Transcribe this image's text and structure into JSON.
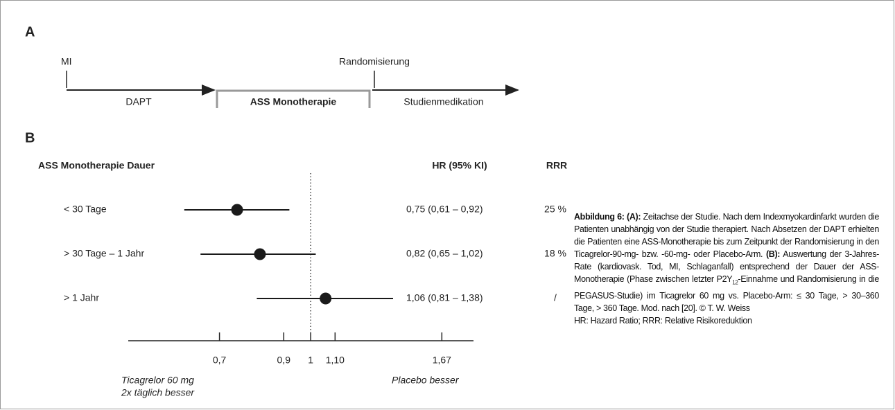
{
  "panel_a": {
    "label": "A",
    "mi": "MI",
    "dapt": "DAPT",
    "monotherapy": "ASS Monotherapie",
    "randomization": "Randomisierung",
    "study_medication": "Studienmedikation"
  },
  "panel_b_label": "B",
  "chart_data": {
    "type": "forest",
    "column_headers": {
      "label": "ASS Monotherapie Dauer",
      "estimate": "HR (95% KI)",
      "rrr": "RRR"
    },
    "categories": [
      "< 30 Tage",
      "> 30 Tage – 1 Jahr",
      "> 1 Jahr"
    ],
    "values": [
      0.75,
      0.82,
      1.06
    ],
    "ci_low": [
      0.61,
      0.65,
      0.81
    ],
    "ci_high": [
      0.92,
      1.02,
      1.38
    ],
    "value_labels": [
      "0,75 (0,61 – 0,92)",
      "0,82 (0,65 – 1,02)",
      "1,06 (0,81 – 1,38)"
    ],
    "rrr": [
      "25 %",
      "18 %",
      "/"
    ],
    "color": "#1a1a1a",
    "log_x": true,
    "xlim": [
      0.49,
      1.89
    ],
    "xticks": [
      {
        "value": 0.7,
        "label": "0,7"
      },
      {
        "value": 0.9,
        "label": "0,9"
      },
      1,
      {
        "value": 1.1,
        "label": "1,10"
      },
      {
        "value": 1.67,
        "label": "1,67"
      }
    ],
    "reference_line": 1,
    "annotations": {
      "left": [
        "Ticagrelor 60 mg",
        "2x täglich besser"
      ],
      "right": "Placebo besser"
    }
  },
  "caption": {
    "parts": [
      "Abbildung 6:",
      "(A):",
      " Zeitachse der Studie. Nach dem Indexmyokardinfarkt wurden die Patienten unabhängig von der Studie therapiert. Nach Absetzen der DAPT erhielten die Patienten eine ASS-Monotherapie bis zum Zeitpunkt der Randomisierung in den Ticagrelor-90-mg- bzw. -60-mg- oder Placebo-Arm. ",
      "(B):",
      " Auswertung der 3-Jahres-Rate (kardiovask. Tod, MI, Schlaganfall) entsprechend der Dauer der ASS-Monotherapie (Phase zwischen letzter P2Y",
      "12",
      "-Einnahme und Randomisierung in die PEGASUS-Studie) im Ticagrelor 60 mg vs. Placebo-Arm: ≤ 30 Tage, > 30–360 Tage, > 360 Tage. Mod. nach [20]. © T. W. Weiss",
      "HR: Hazard Ratio; RRR: Relative Risikoreduktion"
    ]
  }
}
